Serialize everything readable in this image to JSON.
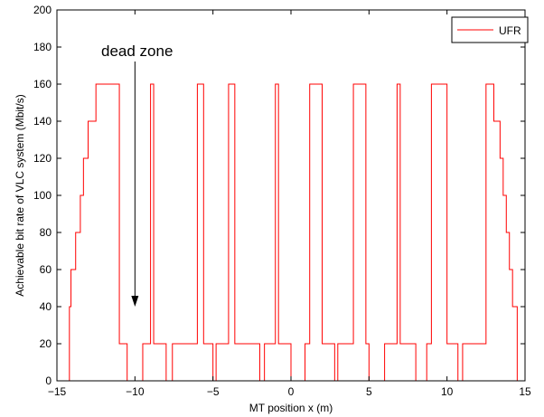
{
  "chart_data": {
    "type": "line",
    "title": "",
    "xlabel": "MT position x (m)",
    "ylabel": "Achievable bit rate of VLC system (Mbit/s)",
    "xlim": [
      -15,
      15
    ],
    "ylim": [
      0,
      200
    ],
    "xticks": [
      -15,
      -10,
      -5,
      0,
      5,
      10,
      15
    ],
    "yticks": [
      0,
      20,
      40,
      60,
      80,
      100,
      120,
      140,
      160,
      180,
      200
    ],
    "grid": false,
    "legend_position": "top-right",
    "series": [
      {
        "name": "UFR",
        "color": "#ff0000",
        "step": true,
        "x": [
          -14.2,
          -14.1,
          -13.8,
          -13.5,
          -13.3,
          -13.0,
          -12.5,
          -11.0,
          -10.5,
          -9.5,
          -9.0,
          -8.8,
          -8.0,
          -7.6,
          -6.0,
          -5.6,
          -5.0,
          -4.8,
          -4.0,
          -3.6,
          -2.0,
          -1.7,
          -1.0,
          -0.8,
          0.0,
          0.9,
          1.2,
          2.0,
          2.8,
          3.0,
          4.0,
          4.8,
          5.0,
          6.0,
          6.8,
          7.0,
          8.0,
          8.7,
          9.0,
          10.0,
          10.7,
          11.0,
          12.5,
          13.0,
          13.4,
          13.6,
          13.8,
          14.0,
          14.2,
          14.5,
          15.0
        ],
        "y": [
          40,
          60,
          80,
          100,
          120,
          140,
          160,
          20,
          0,
          20,
          160,
          20,
          0,
          20,
          160,
          20,
          0,
          20,
          160,
          20,
          0,
          20,
          160,
          20,
          0,
          20,
          160,
          20,
          0,
          20,
          160,
          20,
          0,
          20,
          160,
          20,
          0,
          20,
          160,
          20,
          0,
          20,
          160,
          140,
          120,
          100,
          80,
          60,
          40,
          0,
          0
        ]
      }
    ],
    "annotations": [
      {
        "text": "dead zone",
        "arrow_to": {
          "x": -10,
          "y": 40
        }
      }
    ]
  }
}
